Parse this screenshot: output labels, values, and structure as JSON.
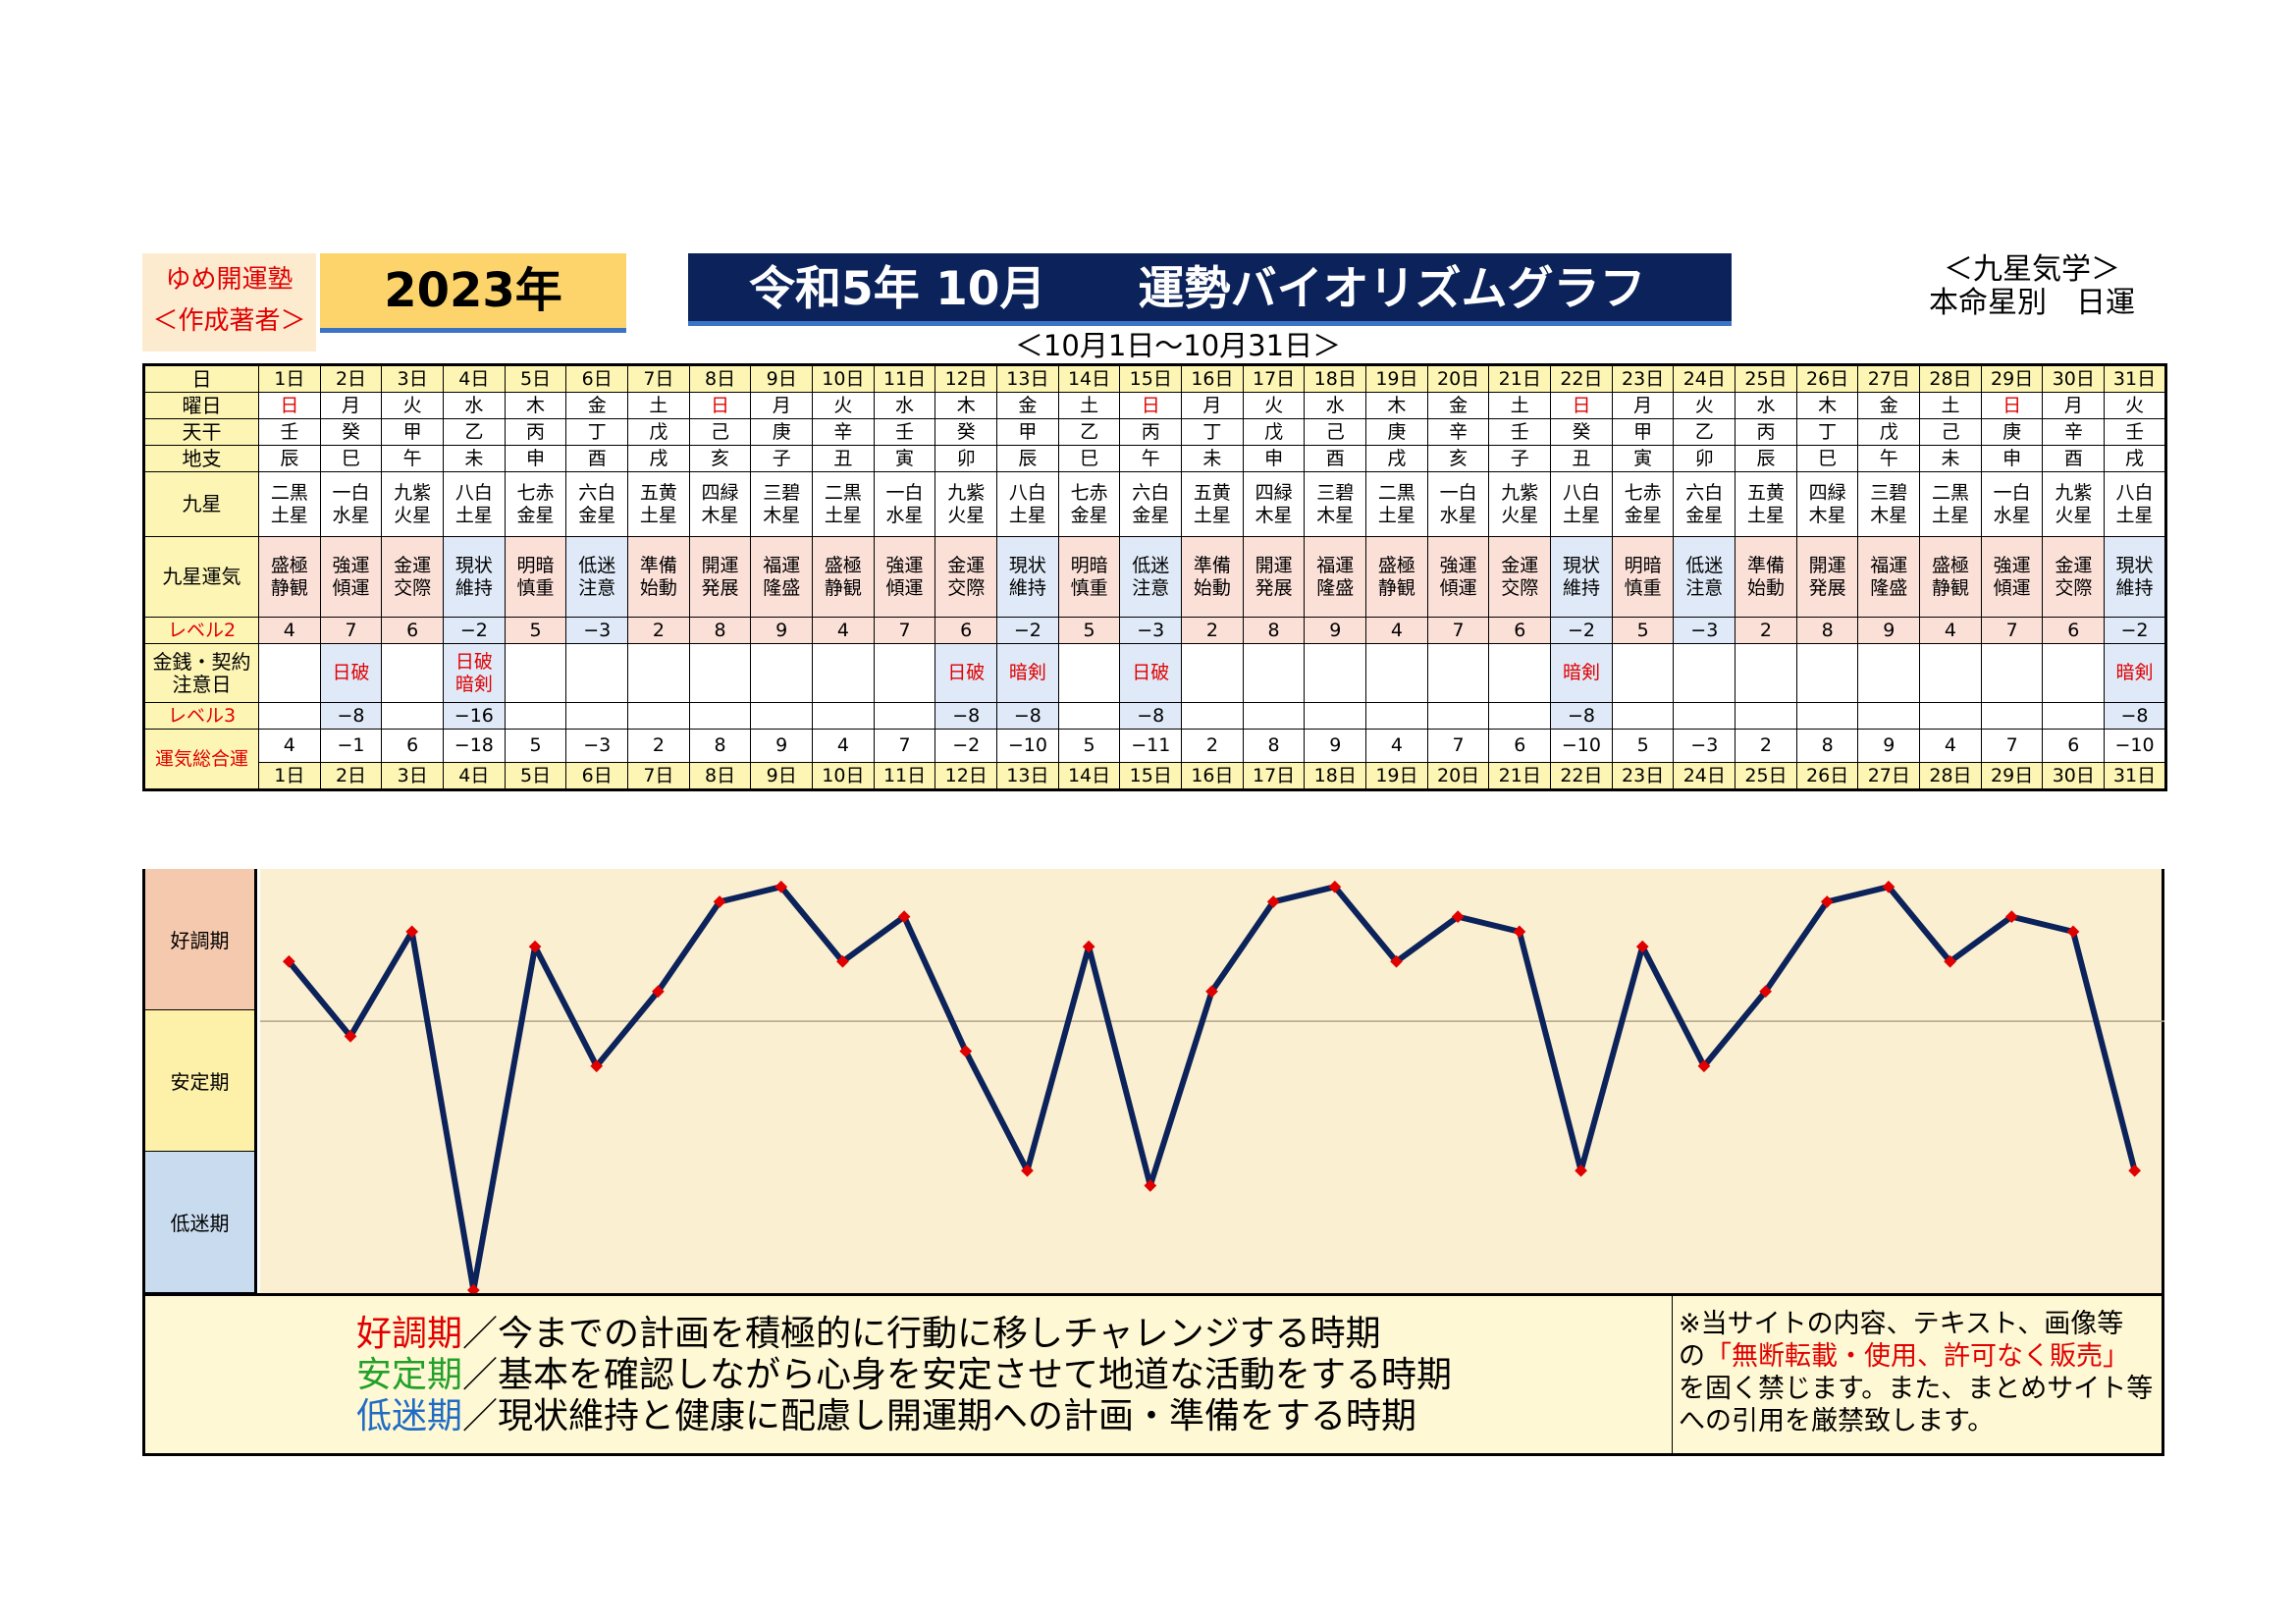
{
  "header": {
    "author_line1": "ゆめ開運塾",
    "author_line2": "＜作成著者＞",
    "year": "2023年",
    "title": "令和5年 10月　　運勢バイオリズムグラフ",
    "top_right_1": "＜九星気学＞",
    "top_right_2": "本命星別　日運",
    "date_range": "＜10月1日〜10月31日＞"
  },
  "row_labels": {
    "day": "日",
    "weekday": "曜日",
    "stem": "天干",
    "branch": "地支",
    "star": "九星",
    "fortune": "九星運気",
    "level2": "レベル2",
    "money": "金銭・契約注意日",
    "level3": "レベル3",
    "total": "運気総合運"
  },
  "days": [
    "1日",
    "2日",
    "3日",
    "4日",
    "5日",
    "6日",
    "7日",
    "8日",
    "9日",
    "10日",
    "11日",
    "12日",
    "13日",
    "14日",
    "15日",
    "16日",
    "17日",
    "18日",
    "19日",
    "20日",
    "21日",
    "22日",
    "23日",
    "24日",
    "25日",
    "26日",
    "27日",
    "28日",
    "29日",
    "30日",
    "31日"
  ],
  "weekdays": [
    "日",
    "月",
    "火",
    "水",
    "木",
    "金",
    "土",
    "日",
    "月",
    "火",
    "水",
    "木",
    "金",
    "土",
    "日",
    "月",
    "火",
    "水",
    "木",
    "金",
    "土",
    "日",
    "月",
    "火",
    "水",
    "木",
    "金",
    "土",
    "日",
    "月",
    "火"
  ],
  "stems": [
    "壬",
    "癸",
    "甲",
    "乙",
    "丙",
    "丁",
    "戊",
    "己",
    "庚",
    "辛",
    "壬",
    "癸",
    "甲",
    "乙",
    "丙",
    "丁",
    "戊",
    "己",
    "庚",
    "辛",
    "壬",
    "癸",
    "甲",
    "乙",
    "丙",
    "丁",
    "戊",
    "己",
    "庚",
    "辛",
    "壬"
  ],
  "branches": [
    "辰",
    "巳",
    "午",
    "未",
    "申",
    "酉",
    "戌",
    "亥",
    "子",
    "丑",
    "寅",
    "卯",
    "辰",
    "巳",
    "午",
    "未",
    "申",
    "酉",
    "戌",
    "亥",
    "子",
    "丑",
    "寅",
    "卯",
    "辰",
    "巳",
    "午",
    "未",
    "申",
    "酉",
    "戌"
  ],
  "stars": [
    [
      "二黒",
      "土星"
    ],
    [
      "一白",
      "水星"
    ],
    [
      "九紫",
      "火星"
    ],
    [
      "八白",
      "土星"
    ],
    [
      "七赤",
      "金星"
    ],
    [
      "六白",
      "金星"
    ],
    [
      "五黄",
      "土星"
    ],
    [
      "四緑",
      "木星"
    ],
    [
      "三碧",
      "木星"
    ],
    [
      "二黒",
      "土星"
    ],
    [
      "一白",
      "水星"
    ],
    [
      "九紫",
      "火星"
    ],
    [
      "八白",
      "土星"
    ],
    [
      "七赤",
      "金星"
    ],
    [
      "六白",
      "金星"
    ],
    [
      "五黄",
      "土星"
    ],
    [
      "四緑",
      "木星"
    ],
    [
      "三碧",
      "木星"
    ],
    [
      "二黒",
      "土星"
    ],
    [
      "一白",
      "水星"
    ],
    [
      "九紫",
      "火星"
    ],
    [
      "八白",
      "土星"
    ],
    [
      "七赤",
      "金星"
    ],
    [
      "六白",
      "金星"
    ],
    [
      "五黄",
      "土星"
    ],
    [
      "四緑",
      "木星"
    ],
    [
      "三碧",
      "木星"
    ],
    [
      "二黒",
      "土星"
    ],
    [
      "一白",
      "水星"
    ],
    [
      "九紫",
      "火星"
    ],
    [
      "八白",
      "土星"
    ]
  ],
  "fortunes": [
    [
      "盛極",
      "静観"
    ],
    [
      "強運",
      "傾運"
    ],
    [
      "金運",
      "交際"
    ],
    [
      "現状",
      "維持"
    ],
    [
      "明暗",
      "慎重"
    ],
    [
      "低迷",
      "注意"
    ],
    [
      "準備",
      "始動"
    ],
    [
      "開運",
      "発展"
    ],
    [
      "福運",
      "隆盛"
    ],
    [
      "盛極",
      "静観"
    ],
    [
      "強運",
      "傾運"
    ],
    [
      "金運",
      "交際"
    ],
    [
      "現状",
      "維持"
    ],
    [
      "明暗",
      "慎重"
    ],
    [
      "低迷",
      "注意"
    ],
    [
      "準備",
      "始動"
    ],
    [
      "開運",
      "発展"
    ],
    [
      "福運",
      "隆盛"
    ],
    [
      "盛極",
      "静観"
    ],
    [
      "強運",
      "傾運"
    ],
    [
      "金運",
      "交際"
    ],
    [
      "現状",
      "維持"
    ],
    [
      "明暗",
      "慎重"
    ],
    [
      "低迷",
      "注意"
    ],
    [
      "準備",
      "始動"
    ],
    [
      "開運",
      "発展"
    ],
    [
      "福運",
      "隆盛"
    ],
    [
      "盛極",
      "静観"
    ],
    [
      "強運",
      "傾運"
    ],
    [
      "金運",
      "交際"
    ],
    [
      "現状",
      "維持"
    ]
  ],
  "level2": [
    "4",
    "7",
    "6",
    "−2",
    "5",
    "−3",
    "2",
    "8",
    "9",
    "4",
    "7",
    "6",
    "−2",
    "5",
    "−3",
    "2",
    "8",
    "9",
    "4",
    "7",
    "6",
    "−2",
    "5",
    "−3",
    "2",
    "8",
    "9",
    "4",
    "7",
    "6",
    "−2"
  ],
  "money": [
    [],
    [
      "日破"
    ],
    [],
    [
      "日破",
      "暗剣"
    ],
    [],
    [],
    [],
    [],
    [],
    [],
    [],
    [
      "日破"
    ],
    [
      "暗剣"
    ],
    [],
    [
      "日破"
    ],
    [],
    [],
    [],
    [],
    [],
    [],
    [
      "暗剣"
    ],
    [],
    [],
    [],
    [],
    [],
    [],
    [],
    [],
    [
      "暗剣"
    ]
  ],
  "level3": [
    "",
    "−8",
    "",
    "−16",
    "",
    "",
    "",
    "",
    "",
    "",
    "",
    "−8",
    "−8",
    "",
    "−8",
    "",
    "",
    "",
    "",
    "",
    "",
    "−8",
    "",
    "",
    "",
    "",
    "",
    "",
    "",
    "",
    "−8"
  ],
  "total": [
    "4",
    "−1",
    "6",
    "−18",
    "5",
    "−3",
    "2",
    "8",
    "9",
    "4",
    "7",
    "−2",
    "−10",
    "5",
    "−11",
    "2",
    "8",
    "9",
    "4",
    "7",
    "6",
    "−10",
    "5",
    "−3",
    "2",
    "8",
    "9",
    "4",
    "7",
    "6",
    "−10"
  ],
  "bands": [
    "好調期",
    "安定期",
    "低迷期"
  ],
  "legend": [
    {
      "term": "好調期",
      "text": "／今までの計画を積極的に行動に移しチャレンジする時期",
      "color": "#e00000"
    },
    {
      "term": "安定期",
      "text": "／基本を確認しながら心身を安定させて地道な活動をする時期",
      "color": "#22a02a"
    },
    {
      "term": "低迷期",
      "text": "／現状維持と健康に配慮し開運期への計画・準備をする時期",
      "color": "#1f6cc4"
    }
  ],
  "notice": {
    "line1": "※当サイトの内容、テキスト、画像等",
    "line2_pre": "の",
    "line2_red": "「無断転載・使用、許可なく販売」",
    "line3": "を固く禁じます。また、まとめサイト等",
    "line4": "への引用を厳禁致します。"
  },
  "chart_data": {
    "type": "line",
    "x": [
      "1日",
      "2日",
      "3日",
      "4日",
      "5日",
      "6日",
      "7日",
      "8日",
      "9日",
      "10日",
      "11日",
      "12日",
      "13日",
      "14日",
      "15日",
      "16日",
      "17日",
      "18日",
      "19日",
      "20日",
      "21日",
      "22日",
      "23日",
      "24日",
      "25日",
      "26日",
      "27日",
      "28日",
      "29日",
      "30日",
      "31日"
    ],
    "series": [
      {
        "values": [
          4,
          -1,
          6,
          -18,
          5,
          -3,
          2,
          8,
          9,
          4,
          7,
          -2,
          -10,
          5,
          -11,
          2,
          8,
          9,
          4,
          7,
          6,
          -10,
          5,
          -3,
          2,
          8,
          9,
          4,
          7,
          6,
          -10
        ]
      }
    ],
    "ylim": [
      -18,
      10
    ],
    "reference_line": 0,
    "bands": [
      "好調期",
      "安定期",
      "低迷期"
    ],
    "line_color": "#0b225a",
    "marker_color": "#e00000",
    "grid": false
  },
  "colors": {
    "title_bg": "#0b225a",
    "year_bg": "#fcd46b",
    "label_bg": "#fdf5b4",
    "plot_bg": "#fbefd1",
    "band_good": "#f5c9ad",
    "band_stable": "#fdf0a8",
    "band_low": "#c9dcef",
    "red": "#e00000"
  }
}
